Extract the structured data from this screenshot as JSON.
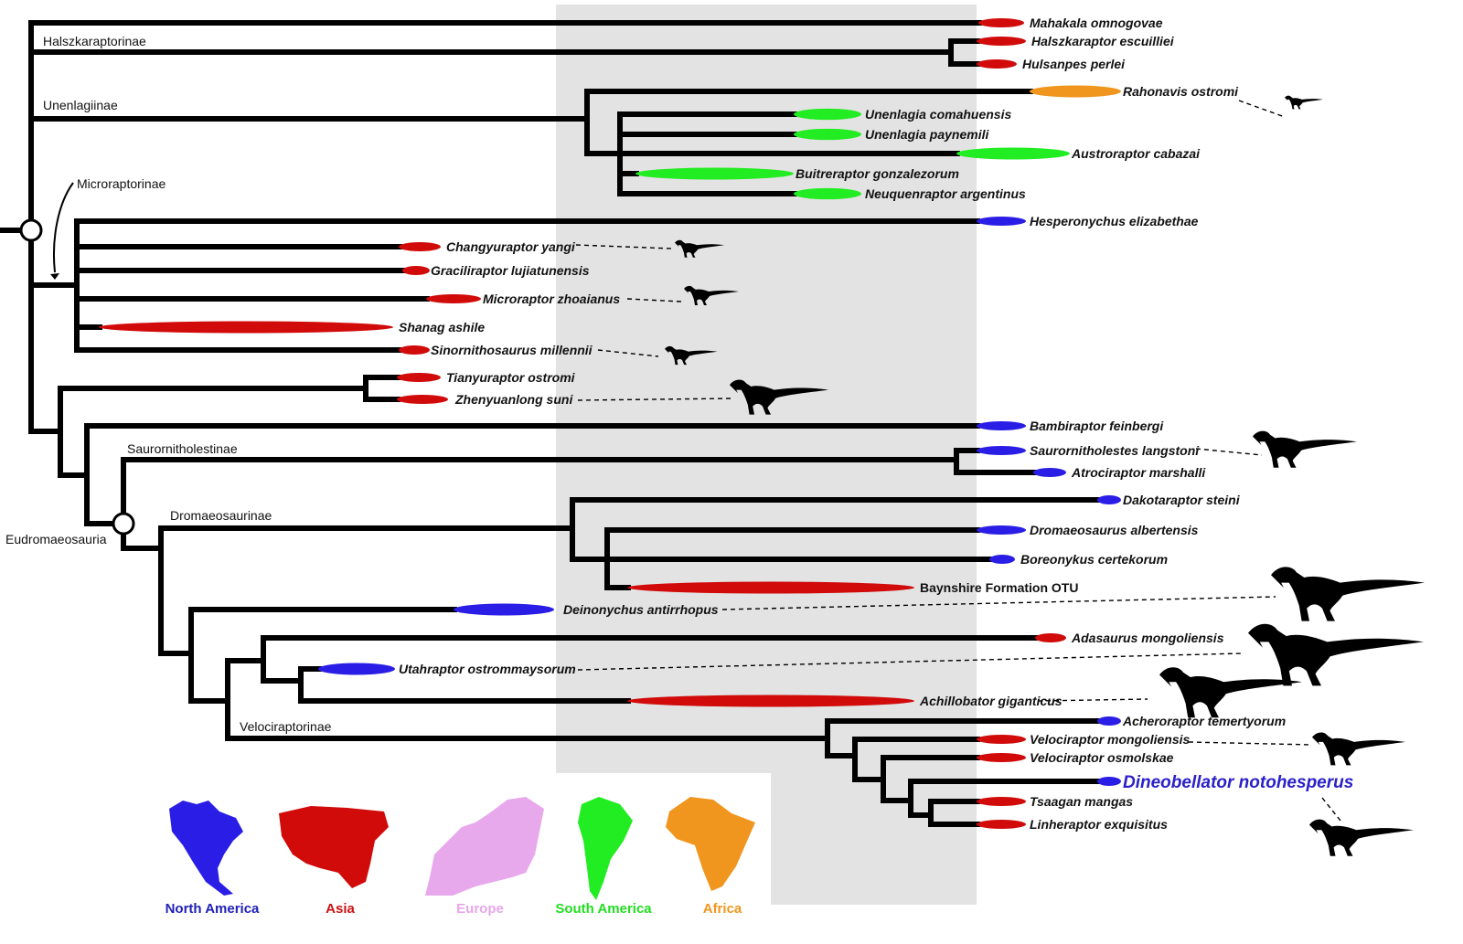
{
  "regions": {
    "NA": {
      "label": "North America",
      "color": "#2a1ee6",
      "text_color": "#1f1fb8"
    },
    "AS": {
      "label": "Asia",
      "color": "#d10a0a",
      "text_color": "#cc1111"
    },
    "EU": {
      "label": "Europe",
      "color": "#e8a8ec",
      "text_color": "#e7a6e9"
    },
    "SA": {
      "label": "South America",
      "color": "#22ec22",
      "text_color": "#22dd22"
    },
    "AF": {
      "label": "Africa",
      "color": "#f0961e",
      "text_color": "#f0961e"
    }
  },
  "legend_order": [
    "NA",
    "AS",
    "EU",
    "SA",
    "AF"
  ],
  "clades": [
    {
      "label": "Halszkaraptorinae"
    },
    {
      "label": "Unenlagiinae"
    },
    {
      "label": "Microraptorinae"
    },
    {
      "label": "Saurornitholestinae"
    },
    {
      "label": "Dromaeosaurinae"
    },
    {
      "label": "Eudromaeosauria"
    },
    {
      "label": "Velociraptorinae"
    }
  ],
  "taxa": [
    {
      "name": "Mahakala omnogovae",
      "region": "AS"
    },
    {
      "name": "Halszkaraptor escuilliei",
      "region": "AS"
    },
    {
      "name": "Hulsanpes perlei",
      "region": "AS"
    },
    {
      "name": "Rahonavis ostromi",
      "region": "AF"
    },
    {
      "name": "Unenlagia comahuensis",
      "region": "SA"
    },
    {
      "name": "Unenlagia paynemili",
      "region": "SA"
    },
    {
      "name": "Austroraptor cabazai",
      "region": "SA"
    },
    {
      "name": "Buitreraptor gonzalezorum",
      "region": "SA"
    },
    {
      "name": "Neuquenraptor argentinus",
      "region": "SA"
    },
    {
      "name": "Hesperonychus elizabethae",
      "region": "NA"
    },
    {
      "name": "Changyuraptor yangi",
      "region": "AS"
    },
    {
      "name": "Graciliraptor lujiatunensis",
      "region": "AS"
    },
    {
      "name": "Microraptor zhoaianus",
      "region": "AS"
    },
    {
      "name": "Shanag ashile",
      "region": "AS"
    },
    {
      "name": "Sinornithosaurus millennii",
      "region": "AS"
    },
    {
      "name": "Tianyuraptor ostromi",
      "region": "AS"
    },
    {
      "name": "Zhenyuanlong suni",
      "region": "AS"
    },
    {
      "name": "Bambiraptor feinbergi",
      "region": "NA"
    },
    {
      "name": "Saurornitholestes langstoni",
      "region": "NA"
    },
    {
      "name": "Atrociraptor marshalli",
      "region": "NA"
    },
    {
      "name": "Dakotaraptor steini",
      "region": "NA"
    },
    {
      "name": "Dromaeosaurus albertensis",
      "region": "NA"
    },
    {
      "name": "Boreonykus certekorum",
      "region": "NA"
    },
    {
      "name": "Baynshire Formation OTU",
      "region": "AS",
      "style": "plain"
    },
    {
      "name": "Deinonychus antirrhopus",
      "region": "NA"
    },
    {
      "name": "Adasaurus mongoliensis",
      "region": "AS"
    },
    {
      "name": "Utahraptor ostrommaysorum",
      "region": "NA"
    },
    {
      "name": "Achillobator giganticus",
      "region": "AS"
    },
    {
      "name": "Acheroraptor temertyorum",
      "region": "NA"
    },
    {
      "name": "Velociraptor mongoliensis",
      "region": "AS"
    },
    {
      "name": "Velociraptor osmolskae",
      "region": "AS"
    },
    {
      "name": "Dineobellator notohesperus",
      "region": "NA",
      "style": "highlight"
    },
    {
      "name": "Tsaagan mangas",
      "region": "AS"
    },
    {
      "name": "Linheraptor exquisitus",
      "region": "AS"
    }
  ],
  "silhouettes_for": [
    "Rahonavis ostromi",
    "Changyuraptor yangi",
    "Microraptor zhoaianus",
    "Sinornithosaurus millennii",
    "Zhenyuanlong suni",
    "Saurornitholestes langstoni",
    "Deinonychus antirrhopus",
    "Utahraptor ostrommaysorum",
    "Achillobator giganticus",
    "Velociraptor mongoliensis",
    "Dineobellator notohesperus"
  ],
  "node_markers": [
    "Dromaeosauridae root node (open circle)",
    "Eudromaeosauria node (open circle)"
  ]
}
